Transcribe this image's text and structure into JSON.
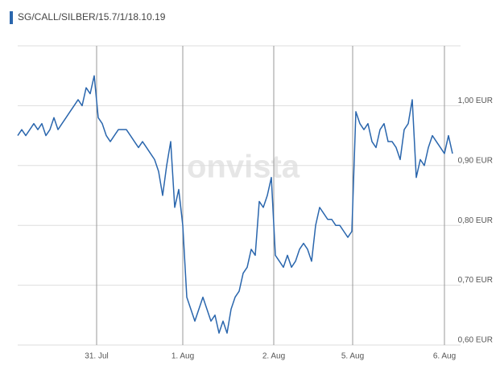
{
  "chart_data": {
    "type": "line",
    "title": "SG/CALL/SILBER/15.7/1/18.10.19",
    "watermark": "onvista",
    "series": [
      {
        "name": "SG/CALL/SILBER/15.7/1/18.10.19",
        "color": "#2a66ad",
        "values": [
          0.95,
          0.96,
          0.95,
          0.96,
          0.97,
          0.96,
          0.97,
          0.95,
          0.96,
          0.98,
          0.96,
          0.97,
          0.98,
          0.99,
          1.0,
          1.01,
          1.0,
          1.03,
          1.02,
          1.05,
          0.98,
          0.97,
          0.95,
          0.94,
          0.95,
          0.96,
          0.96,
          0.96,
          0.95,
          0.94,
          0.93,
          0.94,
          0.93,
          0.92,
          0.91,
          0.89,
          0.85,
          0.9,
          0.94,
          0.83,
          0.86,
          0.8,
          0.68,
          0.66,
          0.64,
          0.66,
          0.68,
          0.66,
          0.64,
          0.65,
          0.62,
          0.64,
          0.62,
          0.66,
          0.68,
          0.69,
          0.72,
          0.73,
          0.76,
          0.75,
          0.84,
          0.83,
          0.85,
          0.88,
          0.75,
          0.74,
          0.73,
          0.75,
          0.73,
          0.74,
          0.76,
          0.77,
          0.76,
          0.74,
          0.8,
          0.83,
          0.82,
          0.81,
          0.81,
          0.8,
          0.8,
          0.79,
          0.78,
          0.79,
          0.99,
          0.97,
          0.96,
          0.97,
          0.94,
          0.93,
          0.96,
          0.97,
          0.94,
          0.94,
          0.93,
          0.91,
          0.96,
          0.97,
          1.01,
          0.88,
          0.91,
          0.9,
          0.93,
          0.95,
          0.94,
          0.93,
          0.92,
          0.95,
          0.92
        ]
      }
    ],
    "xlim": [
      0,
      110
    ],
    "xticks": [
      {
        "value": 19.6,
        "label": "31. Jul"
      },
      {
        "value": 41,
        "label": "1. Aug"
      },
      {
        "value": 63.6,
        "label": "2. Aug"
      },
      {
        "value": 83.2,
        "label": "5. Aug"
      },
      {
        "value": 106,
        "label": "6. Aug"
      }
    ],
    "ylim": [
      0.6,
      1.1
    ],
    "yticks": [
      {
        "value": 0.6,
        "label": "0,60 EUR"
      },
      {
        "value": 0.7,
        "label": "0,70 EUR"
      },
      {
        "value": 0.8,
        "label": "0,80 EUR"
      },
      {
        "value": 0.9,
        "label": "0,90 EUR"
      },
      {
        "value": 1.0,
        "label": "1,00 EUR"
      }
    ],
    "grid": true
  }
}
